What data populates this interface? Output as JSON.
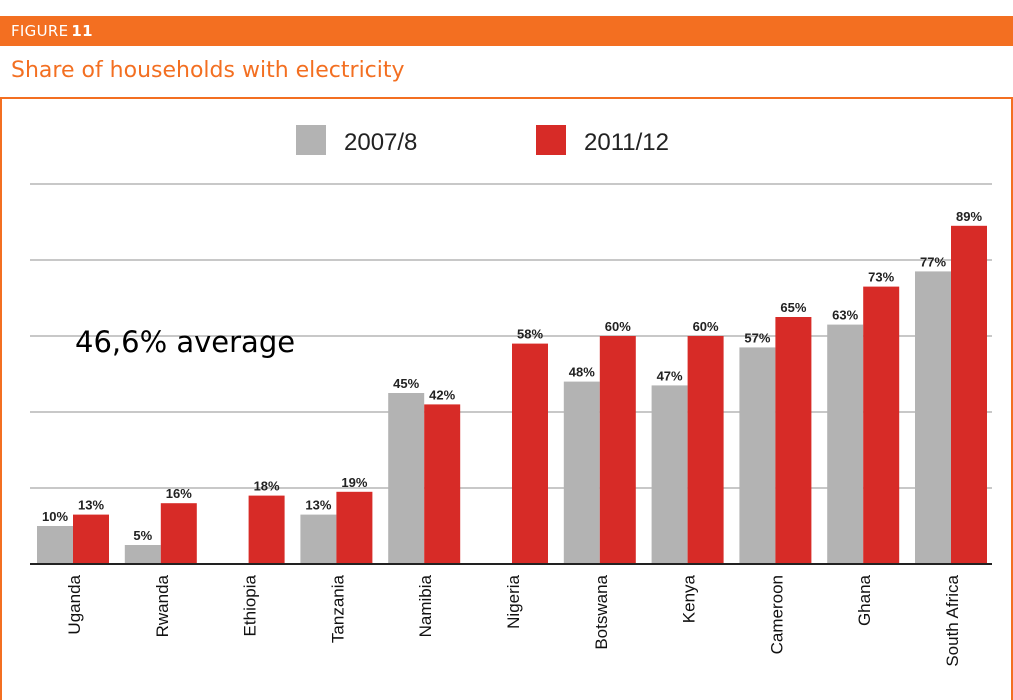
{
  "header": {
    "figure_word": "FIGURE",
    "figure_number": "11",
    "title": "Share of households with electricity"
  },
  "colors": {
    "accent": "#f36f21",
    "series_2007": "#b3b3b3",
    "series_2011": "#d72b27",
    "gridline": "#a6a6a6"
  },
  "chart_data": {
    "type": "bar",
    "categories": [
      "Uganda",
      "Rwanda",
      "Ethiopia",
      "Tanzania",
      "Namibia",
      "Nigeria",
      "Botswana",
      "Kenya",
      "Cameroon",
      "Ghana",
      "South Africa"
    ],
    "series": [
      {
        "name": "2007/8",
        "color": "#b3b3b3",
        "values": [
          10,
          5,
          null,
          13,
          45,
          null,
          48,
          47,
          57,
          63,
          77
        ],
        "labels": [
          "10%",
          "5%",
          "",
          "13%",
          "45%",
          "",
          "48%",
          "47%",
          "57%",
          "63%",
          "77%"
        ]
      },
      {
        "name": "2011/12",
        "color": "#d72b27",
        "values": [
          13,
          16,
          18,
          19,
          42,
          58,
          60,
          60,
          65,
          73,
          89
        ],
        "labels": [
          "13%",
          "16%",
          "18%",
          "19%",
          "42%",
          "58%",
          "60%",
          "60%",
          "65%",
          "73%",
          "89%"
        ]
      }
    ],
    "ylim": [
      0,
      100
    ],
    "grid": true,
    "legend": "top",
    "annotation": "46,6% average"
  }
}
